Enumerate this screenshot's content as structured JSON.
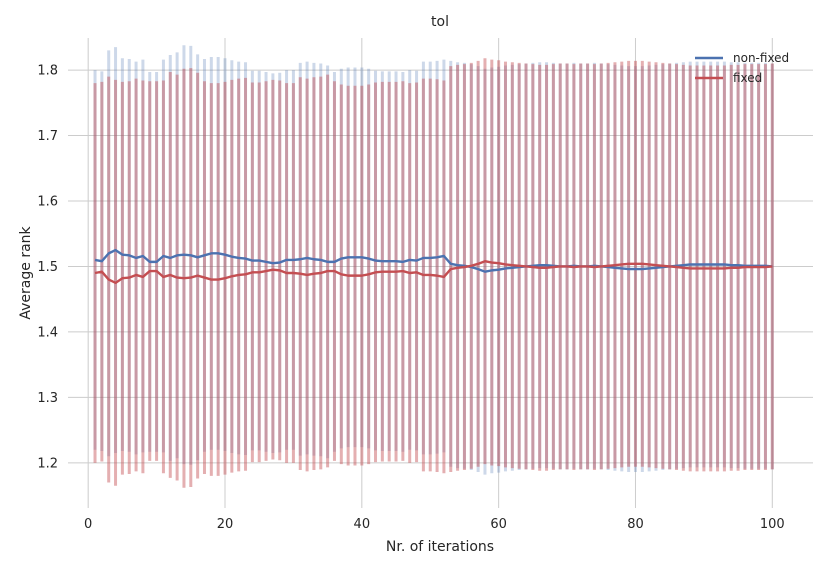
{
  "chart_data": {
    "type": "line",
    "title": "tol",
    "xlabel": "Nr. of iterations",
    "ylabel": "Average rank",
    "xlim": [
      -2.95,
      105.95
    ],
    "ylim": [
      1.131,
      1.849
    ],
    "xticks": [
      0,
      20,
      40,
      60,
      80,
      100
    ],
    "xtick_labels": [
      "0",
      "20",
      "40",
      "60",
      "80",
      "100"
    ],
    "yticks": [
      1.2,
      1.3,
      1.4,
      1.5,
      1.6,
      1.7,
      1.8
    ],
    "ytick_labels": [
      "1.2",
      "1.3",
      "1.4",
      "1.5",
      "1.6",
      "1.7",
      "1.8"
    ],
    "grid": true,
    "legend_position": "top-right",
    "error_bars": true,
    "series": [
      {
        "name": "non-fixed",
        "color": "#4c72b0",
        "x": [
          1,
          2,
          3,
          4,
          5,
          6,
          7,
          8,
          9,
          10,
          11,
          12,
          13,
          14,
          15,
          16,
          17,
          18,
          19,
          20,
          21,
          22,
          23,
          24,
          25,
          26,
          27,
          28,
          29,
          30,
          31,
          32,
          33,
          34,
          35,
          36,
          37,
          38,
          39,
          40,
          41,
          42,
          43,
          44,
          45,
          46,
          47,
          48,
          49,
          50,
          51,
          52,
          53,
          54,
          55,
          56,
          57,
          58,
          59,
          60,
          61,
          62,
          63,
          64,
          65,
          66,
          67,
          68,
          69,
          70,
          71,
          72,
          73,
          74,
          75,
          76,
          77,
          78,
          79,
          80,
          81,
          82,
          83,
          84,
          85,
          86,
          87,
          88,
          89,
          90,
          91,
          92,
          93,
          94,
          95,
          96,
          97,
          98,
          99,
          100
        ],
        "y": [
          1.51,
          1.508,
          1.52,
          1.525,
          1.518,
          1.517,
          1.513,
          1.516,
          1.507,
          1.507,
          1.516,
          1.513,
          1.517,
          1.518,
          1.517,
          1.514,
          1.517,
          1.52,
          1.52,
          1.518,
          1.515,
          1.513,
          1.512,
          1.509,
          1.509,
          1.507,
          1.505,
          1.506,
          1.51,
          1.51,
          1.511,
          1.513,
          1.511,
          1.51,
          1.507,
          1.507,
          1.512,
          1.514,
          1.514,
          1.514,
          1.512,
          1.509,
          1.508,
          1.508,
          1.508,
          1.507,
          1.51,
          1.509,
          1.513,
          1.513,
          1.514,
          1.516,
          1.504,
          1.502,
          1.501,
          1.499,
          1.496,
          1.492,
          1.494,
          1.495,
          1.497,
          1.498,
          1.499,
          1.5,
          1.501,
          1.502,
          1.502,
          1.501,
          1.5,
          1.5,
          1.501,
          1.5,
          1.5,
          1.501,
          1.5,
          1.499,
          1.498,
          1.497,
          1.496,
          1.496,
          1.496,
          1.497,
          1.498,
          1.499,
          1.5,
          1.501,
          1.502,
          1.503,
          1.503,
          1.503,
          1.503,
          1.503,
          1.503,
          1.502,
          1.502,
          1.501,
          1.501,
          1.501,
          1.501,
          1.5
        ],
        "yerr": [
          0.29,
          0.29,
          0.31,
          0.31,
          0.3,
          0.3,
          0.3,
          0.3,
          0.29,
          0.29,
          0.3,
          0.31,
          0.31,
          0.32,
          0.32,
          0.31,
          0.3,
          0.3,
          0.3,
          0.3,
          0.3,
          0.3,
          0.3,
          0.29,
          0.29,
          0.29,
          0.29,
          0.29,
          0.29,
          0.29,
          0.3,
          0.3,
          0.3,
          0.3,
          0.3,
          0.29,
          0.29,
          0.29,
          0.29,
          0.29,
          0.29,
          0.29,
          0.29,
          0.29,
          0.29,
          0.29,
          0.29,
          0.29,
          0.3,
          0.3,
          0.3,
          0.3,
          0.31,
          0.31,
          0.31,
          0.31,
          0.31,
          0.31,
          0.31,
          0.31,
          0.31,
          0.31,
          0.31,
          0.31,
          0.31,
          0.31,
          0.31,
          0.31,
          0.31,
          0.31,
          0.31,
          0.31,
          0.31,
          0.31,
          0.31,
          0.31,
          0.31,
          0.31,
          0.31,
          0.31,
          0.31,
          0.31,
          0.31,
          0.31,
          0.31,
          0.31,
          0.31,
          0.31,
          0.31,
          0.31,
          0.31,
          0.31,
          0.31,
          0.31,
          0.31,
          0.31,
          0.31,
          0.31,
          0.31,
          0.31
        ]
      },
      {
        "name": "fixed",
        "color": "#c44e52",
        "x": [
          1,
          2,
          3,
          4,
          5,
          6,
          7,
          8,
          9,
          10,
          11,
          12,
          13,
          14,
          15,
          16,
          17,
          18,
          19,
          20,
          21,
          22,
          23,
          24,
          25,
          26,
          27,
          28,
          29,
          30,
          31,
          32,
          33,
          34,
          35,
          36,
          37,
          38,
          39,
          40,
          41,
          42,
          43,
          44,
          45,
          46,
          47,
          48,
          49,
          50,
          51,
          52,
          53,
          54,
          55,
          56,
          57,
          58,
          59,
          60,
          61,
          62,
          63,
          64,
          65,
          66,
          67,
          68,
          69,
          70,
          71,
          72,
          73,
          74,
          75,
          76,
          77,
          78,
          79,
          80,
          81,
          82,
          83,
          84,
          85,
          86,
          87,
          88,
          89,
          90,
          91,
          92,
          93,
          94,
          95,
          96,
          97,
          98,
          99,
          100
        ],
        "y": [
          1.49,
          1.492,
          1.48,
          1.475,
          1.482,
          1.483,
          1.487,
          1.484,
          1.493,
          1.493,
          1.484,
          1.487,
          1.483,
          1.482,
          1.483,
          1.486,
          1.483,
          1.48,
          1.48,
          1.482,
          1.485,
          1.487,
          1.488,
          1.491,
          1.491,
          1.493,
          1.495,
          1.494,
          1.49,
          1.49,
          1.489,
          1.487,
          1.489,
          1.49,
          1.493,
          1.493,
          1.488,
          1.486,
          1.486,
          1.486,
          1.488,
          1.491,
          1.492,
          1.492,
          1.492,
          1.493,
          1.49,
          1.491,
          1.487,
          1.487,
          1.486,
          1.484,
          1.496,
          1.498,
          1.499,
          1.501,
          1.504,
          1.508,
          1.506,
          1.505,
          1.503,
          1.502,
          1.501,
          1.5,
          1.499,
          1.498,
          1.498,
          1.499,
          1.5,
          1.5,
          1.499,
          1.5,
          1.5,
          1.499,
          1.5,
          1.501,
          1.502,
          1.503,
          1.504,
          1.504,
          1.504,
          1.503,
          1.502,
          1.501,
          1.5,
          1.499,
          1.498,
          1.497,
          1.497,
          1.497,
          1.497,
          1.497,
          1.497,
          1.498,
          1.498,
          1.499,
          1.499,
          1.499,
          1.499,
          1.5
        ],
        "yerr": [
          0.29,
          0.29,
          0.31,
          0.31,
          0.3,
          0.3,
          0.3,
          0.3,
          0.29,
          0.29,
          0.3,
          0.31,
          0.31,
          0.32,
          0.32,
          0.31,
          0.3,
          0.3,
          0.3,
          0.3,
          0.3,
          0.3,
          0.3,
          0.29,
          0.29,
          0.29,
          0.29,
          0.29,
          0.29,
          0.29,
          0.3,
          0.3,
          0.3,
          0.3,
          0.3,
          0.29,
          0.29,
          0.29,
          0.29,
          0.29,
          0.29,
          0.29,
          0.29,
          0.29,
          0.29,
          0.29,
          0.29,
          0.29,
          0.3,
          0.3,
          0.3,
          0.3,
          0.31,
          0.31,
          0.31,
          0.31,
          0.31,
          0.31,
          0.31,
          0.31,
          0.31,
          0.31,
          0.31,
          0.31,
          0.31,
          0.31,
          0.31,
          0.31,
          0.31,
          0.31,
          0.31,
          0.31,
          0.31,
          0.31,
          0.31,
          0.31,
          0.31,
          0.31,
          0.31,
          0.31,
          0.31,
          0.31,
          0.31,
          0.31,
          0.31,
          0.31,
          0.31,
          0.31,
          0.31,
          0.31,
          0.31,
          0.31,
          0.31,
          0.31,
          0.31,
          0.31,
          0.31,
          0.31,
          0.31,
          0.31
        ]
      }
    ]
  }
}
